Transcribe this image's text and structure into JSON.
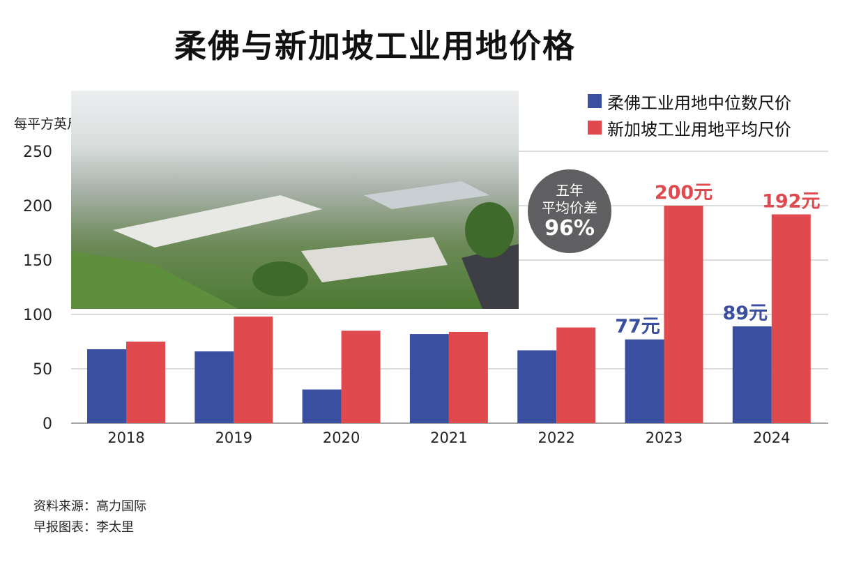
{
  "title": "柔佛与新加坡工业用地价格",
  "chart_data": {
    "type": "bar",
    "ylabel": "每平方英尺价（元）",
    "xlabel": "",
    "ylim": [
      0,
      250
    ],
    "yticks": [
      0,
      50,
      100,
      150,
      200,
      250
    ],
    "grid": true,
    "legend_position": "top-right",
    "categories": [
      "2018",
      "2019",
      "2020",
      "2021",
      "2022",
      "2023",
      "2024"
    ],
    "series": [
      {
        "name": "柔佛工业用地中位数尺价",
        "color": "#3a4fa0",
        "values": [
          68,
          66,
          31,
          82,
          67,
          77,
          89
        ]
      },
      {
        "name": "新加坡工业用地平均尺价",
        "color": "#e04a4f",
        "values": [
          75,
          98,
          85,
          84,
          88,
          200,
          192
        ]
      }
    ],
    "data_labels": [
      {
        "series": 0,
        "index": 5,
        "text": "77元"
      },
      {
        "series": 1,
        "index": 5,
        "text": "200元"
      },
      {
        "series": 0,
        "index": 6,
        "text": "89元"
      },
      {
        "series": 1,
        "index": 6,
        "text": "192元"
      }
    ]
  },
  "badge": {
    "line1": "五年",
    "line2": "平均价差",
    "line3": "96%"
  },
  "photo_description": "",
  "footer": {
    "source": "资料来源：高力国际",
    "credit": "早报图表：李太里"
  }
}
